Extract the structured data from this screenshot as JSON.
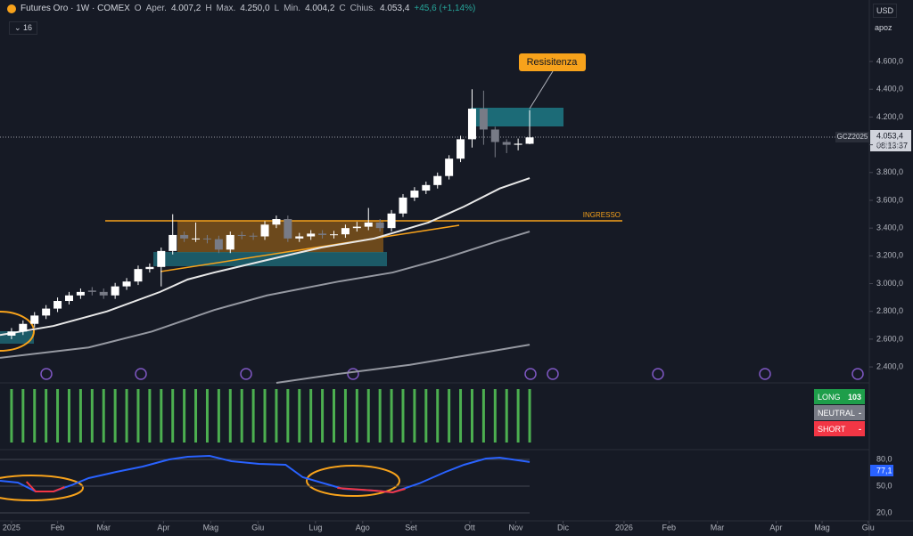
{
  "header": {
    "title": "Futures Oro · 1W · COMEX",
    "items": [
      {
        "key": "O",
        "text": "Aper.",
        "value": "4.007,2"
      },
      {
        "key": "H",
        "text": "Max.",
        "value": "4.250,0"
      },
      {
        "key": "L",
        "text": "Min.",
        "value": "4.004,2"
      },
      {
        "key": "C",
        "text": "Chius.",
        "value": "4.053,4"
      }
    ],
    "change": "+45,6 (+1,14%)",
    "count": "16",
    "currency": "USD",
    "scale": "apoz"
  },
  "signal_box": [
    {
      "label": "LONG",
      "value": "103"
    },
    {
      "label": "NEUTRAL",
      "value": "-"
    },
    {
      "label": "SHORT",
      "value": "-"
    }
  ],
  "chart_data": [
    {
      "type": "candlestick",
      "symbol": "GCZ2025",
      "last_price": {
        "value": 4053.4,
        "label": "4.053,4"
      },
      "countdown": "08:13:37",
      "annotations": [
        "Resisitenza",
        "INGRESSO"
      ],
      "xlim": [
        -1,
        74.5
      ],
      "ylim": [
        2285,
        5043
      ],
      "yticks": [
        {
          "value": 2400,
          "label": "2.400,0"
        },
        {
          "value": 2600,
          "label": "2.600,0"
        },
        {
          "value": 2800,
          "label": "2.800,0"
        },
        {
          "value": 3000,
          "label": "3.000,0"
        },
        {
          "value": 3200,
          "label": "3.200,0"
        },
        {
          "value": 3400,
          "label": "3.400,0"
        },
        {
          "value": 3600,
          "label": "3.600,0"
        },
        {
          "value": 3800,
          "label": "3.800,0"
        },
        {
          "value": 4000,
          "label": "4.000,0"
        },
        {
          "value": 4200,
          "label": "4.200,0"
        },
        {
          "value": 4400,
          "label": "4.400,0"
        },
        {
          "value": 4600,
          "label": "4.600,0"
        }
      ],
      "xticks": [
        {
          "value": 0,
          "label": "2025"
        },
        {
          "value": 4,
          "label": "Feb"
        },
        {
          "value": 8,
          "label": "Mar"
        },
        {
          "value": 13.2,
          "label": "Apr"
        },
        {
          "value": 17.3,
          "label": "Mag"
        },
        {
          "value": 21.4,
          "label": "Giu"
        },
        {
          "value": 26.4,
          "label": "Lug"
        },
        {
          "value": 30.5,
          "label": "Ago"
        },
        {
          "value": 34.7,
          "label": "Set"
        },
        {
          "value": 39.8,
          "label": "Ott"
        },
        {
          "value": 43.8,
          "label": "Nov"
        },
        {
          "value": 47.9,
          "label": "Dic"
        },
        {
          "value": 53.2,
          "label": "2026"
        },
        {
          "value": 57.1,
          "label": "Feb"
        },
        {
          "value": 61.3,
          "label": "Mar"
        },
        {
          "value": 66.4,
          "label": "Apr"
        },
        {
          "value": 70.4,
          "label": "Mag"
        },
        {
          "value": 74.4,
          "label": "Giu"
        }
      ],
      "open": [
        2625,
        2655,
        2710,
        2770,
        2820,
        2875,
        2915,
        2950,
        2940,
        2915,
        2980,
        3015,
        3105,
        3120,
        3235,
        3350,
        3325,
        3325,
        3320,
        3245,
        3350,
        3345,
        3340,
        3425,
        3465,
        3325,
        3340,
        3360,
        3350,
        3355,
        3400,
        3410,
        3440,
        3400,
        3505,
        3620,
        3670,
        3710,
        3775,
        3900,
        4040,
        4260,
        4110,
        4020,
        4000,
        4007.2
      ],
      "high": [
        2680,
        2735,
        2795,
        2845,
        2900,
        2940,
        2965,
        2975,
        2965,
        3005,
        3040,
        3130,
        3145,
        3260,
        3500,
        3375,
        3440,
        3350,
        3345,
        3375,
        3375,
        3365,
        3450,
        3490,
        3490,
        3365,
        3385,
        3385,
        3380,
        3425,
        3445,
        3545,
        3465,
        3530,
        3645,
        3695,
        3735,
        3800,
        3925,
        4065,
        4400,
        4390,
        4130,
        4040,
        4045,
        4250
      ],
      "low": [
        2600,
        2630,
        2685,
        2745,
        2795,
        2850,
        2890,
        2915,
        2890,
        2890,
        2955,
        2990,
        3080,
        2980,
        3210,
        3300,
        3300,
        3290,
        3220,
        3220,
        3320,
        3315,
        3315,
        3400,
        3300,
        3300,
        3315,
        3325,
        3325,
        3330,
        3375,
        3385,
        3375,
        3375,
        3480,
        3595,
        3645,
        3685,
        3750,
        3875,
        3980,
        4000,
        3910,
        3940,
        3960,
        4004.2
      ],
      "close": [
        2655,
        2710,
        2770,
        2820,
        2875,
        2915,
        2940,
        2940,
        2915,
        2980,
        3015,
        3105,
        3120,
        3235,
        3350,
        3325,
        3325,
        3320,
        3245,
        3350,
        3345,
        3340,
        3425,
        3465,
        3325,
        3340,
        3360,
        3350,
        3355,
        3400,
        3410,
        3440,
        3400,
        3505,
        3620,
        3670,
        3710,
        3775,
        3900,
        4040,
        4260,
        4110,
        4020,
        4000,
        4007.8,
        4053.4
      ],
      "up_color": "#ffffff",
      "down_color": "#787b86",
      "series": [
        {
          "color": "#e8e8e8",
          "x": [
            -1,
            3.65,
            8.3,
            12.9,
            15.3,
            17.6,
            22.2,
            26.9,
            31.5,
            36.2,
            39.3,
            42.4,
            45
          ],
          "values": [
            2630,
            2695,
            2800,
            2940,
            3030,
            3080,
            3170,
            3260,
            3325,
            3440,
            3555,
            3685,
            3760
          ]
        },
        {
          "color": "#9598a1",
          "x": [
            -1,
            6.7,
            12.2,
            17.6,
            22.2,
            28.4,
            33.1,
            37.7,
            42.4,
            45
          ],
          "values": [
            2465,
            2540,
            2655,
            2810,
            2915,
            3015,
            3080,
            3185,
            3310,
            3375
          ]
        },
        {
          "color": "#9598a1",
          "x": [
            23,
            28.4,
            34.6,
            39.3,
            45
          ],
          "values": [
            2285,
            2350,
            2415,
            2480,
            2560
          ]
        }
      ]
    },
    {
      "type": "line",
      "xlim": [
        -1,
        74.5
      ],
      "ylim": [
        11,
        91
      ],
      "yticks": [
        {
          "value": 80,
          "label": "80,0"
        },
        {
          "value": 50,
          "label": "50,0"
        },
        {
          "value": 20,
          "label": "20,0"
        }
      ],
      "last_value": {
        "value": 77.1,
        "label": "77,1"
      },
      "series": [
        {
          "color": "#2962ff",
          "x": [
            -1,
            0.55,
            2.1,
            3.65,
            5.2,
            6.7,
            9.1,
            11.4,
            13.7,
            15.3,
            17.2,
            19.1,
            21.5,
            23.8,
            25.3,
            26.9,
            28.8,
            31.5,
            33.1,
            35.4,
            37.7,
            39.3,
            41.2,
            42.4,
            45
          ],
          "values": [
            56,
            54,
            44,
            44,
            51,
            59,
            66,
            72,
            80,
            83,
            84,
            78,
            75,
            74,
            60,
            54,
            47,
            45,
            43,
            53,
            66,
            74,
            81,
            82,
            77.1
          ]
        },
        {
          "color": "#f23645",
          "x": [
            1.3,
            2.1,
            3.65,
            4.6,
            5,
            28.3,
            31.5,
            33.1,
            34.2
          ],
          "values": [
            55,
            44,
            44,
            49,
            null,
            48,
            45,
            43,
            47
          ]
        }
      ]
    }
  ]
}
